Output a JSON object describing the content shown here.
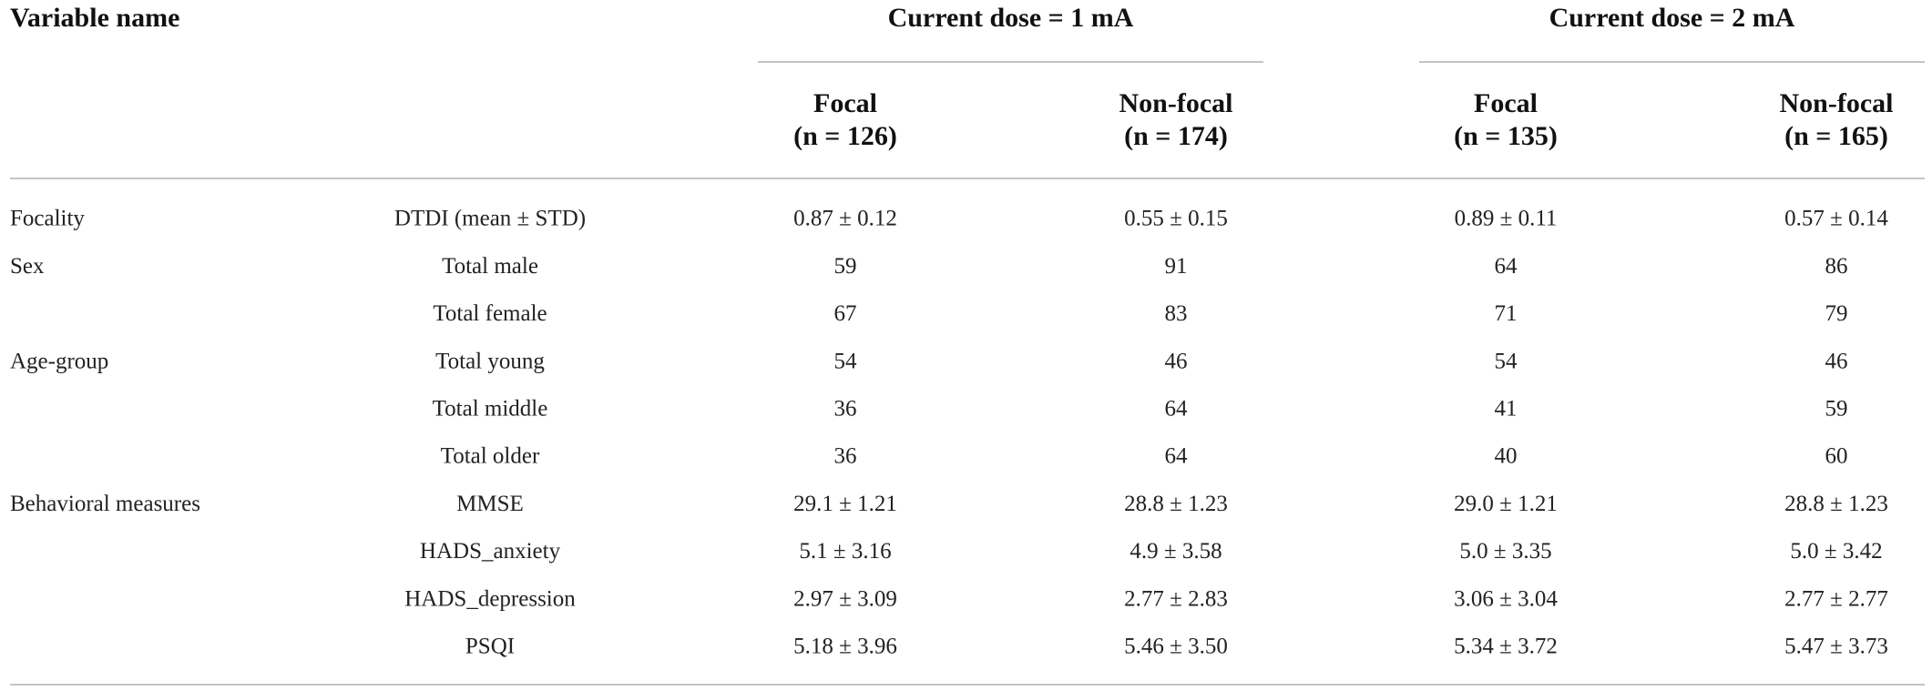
{
  "table": {
    "corner": "Variable name",
    "groups": [
      "Current dose = 1 mA",
      "Current dose = 2 mA"
    ],
    "columns": [
      {
        "name": "Focal",
        "n": "(n = 126)"
      },
      {
        "name": "Non-focal",
        "n": "(n = 174)"
      },
      {
        "name": "Focal",
        "n": "(n = 135)"
      },
      {
        "name": "Non-focal",
        "n": "(n = 165)"
      }
    ],
    "sections": [
      {
        "name": "Focality",
        "rows": [
          {
            "label": "DTDI (mean ± STD)",
            "values": [
              "0.87 ± 0.12",
              "0.55 ± 0.15",
              "0.89 ± 0.11",
              "0.57 ± 0.14"
            ]
          }
        ]
      },
      {
        "name": "Sex",
        "rows": [
          {
            "label": "Total male",
            "values": [
              59,
              91,
              64,
              86
            ]
          },
          {
            "label": "Total female",
            "values": [
              67,
              83,
              71,
              79
            ]
          }
        ]
      },
      {
        "name": "Age-group",
        "rows": [
          {
            "label": "Total young",
            "values": [
              54,
              46,
              54,
              46
            ]
          },
          {
            "label": "Total middle",
            "values": [
              36,
              64,
              41,
              59
            ]
          },
          {
            "label": "Total older",
            "values": [
              36,
              64,
              40,
              60
            ]
          }
        ]
      },
      {
        "name": "Behavioral measures",
        "rows": [
          {
            "label": "MMSE",
            "values": [
              "29.1 ± 1.21",
              "28.8 ± 1.23",
              "29.0 ± 1.21",
              "28.8 ± 1.23"
            ]
          },
          {
            "label": "HADS_anxiety",
            "values": [
              "5.1 ± 3.16",
              "4.9 ± 3.58",
              "5.0 ± 3.35",
              "5.0 ± 3.42"
            ]
          },
          {
            "label": "HADS_depression",
            "values": [
              "2.97 ± 3.09",
              "2.77 ± 2.83",
              "3.06 ± 3.04",
              "2.77 ± 2.77"
            ]
          },
          {
            "label": "PSQI",
            "values": [
              "5.18 ± 3.96",
              "5.46 ± 3.50",
              "5.34 ± 3.72",
              "5.47 ± 3.73"
            ]
          }
        ]
      }
    ]
  }
}
